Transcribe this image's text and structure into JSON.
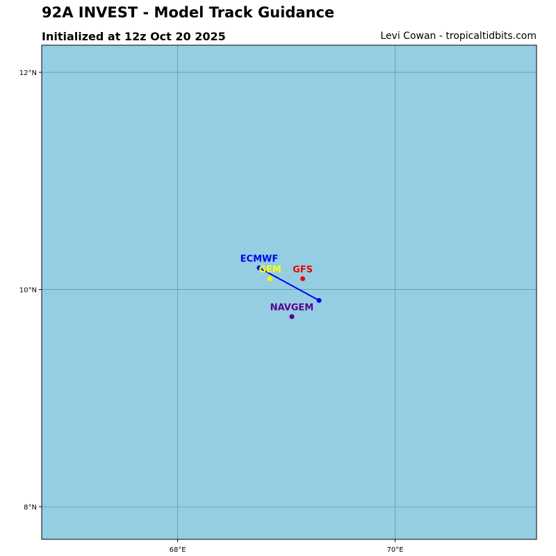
{
  "header": {
    "title": "92A INVEST - Model Track Guidance",
    "subtitle": "Initialized at 12z Oct 20 2025",
    "credit": "Levi Cowan - tropicaltidbits.com"
  },
  "map": {
    "ocean_color": "#95cee3",
    "grid_color": "#4f7f8f",
    "lon_range": [
      66.75,
      71.3
    ],
    "lat_range": [
      7.7,
      12.25
    ],
    "lat_ticks": [
      {
        "value": 12,
        "label": "12°N"
      },
      {
        "value": 10,
        "label": "10°N"
      },
      {
        "value": 8,
        "label": "8°N"
      }
    ],
    "lon_ticks": [
      {
        "value": 68,
        "label": "68°E"
      },
      {
        "value": 70,
        "label": "70°E"
      }
    ]
  },
  "models": [
    {
      "name": "ECMWF",
      "color": "#0000ee",
      "track": [
        [
          68.75,
          10.2
        ],
        [
          69.3,
          9.9
        ]
      ]
    },
    {
      "name": "GEM",
      "color": "#ffff00",
      "track": [
        [
          68.85,
          10.1
        ]
      ]
    },
    {
      "name": "GFS",
      "color": "#ee0000",
      "track": [
        [
          69.15,
          10.1
        ]
      ]
    },
    {
      "name": "NAVGEM",
      "color": "#5a0091",
      "track": [
        [
          69.05,
          9.75
        ]
      ]
    }
  ]
}
